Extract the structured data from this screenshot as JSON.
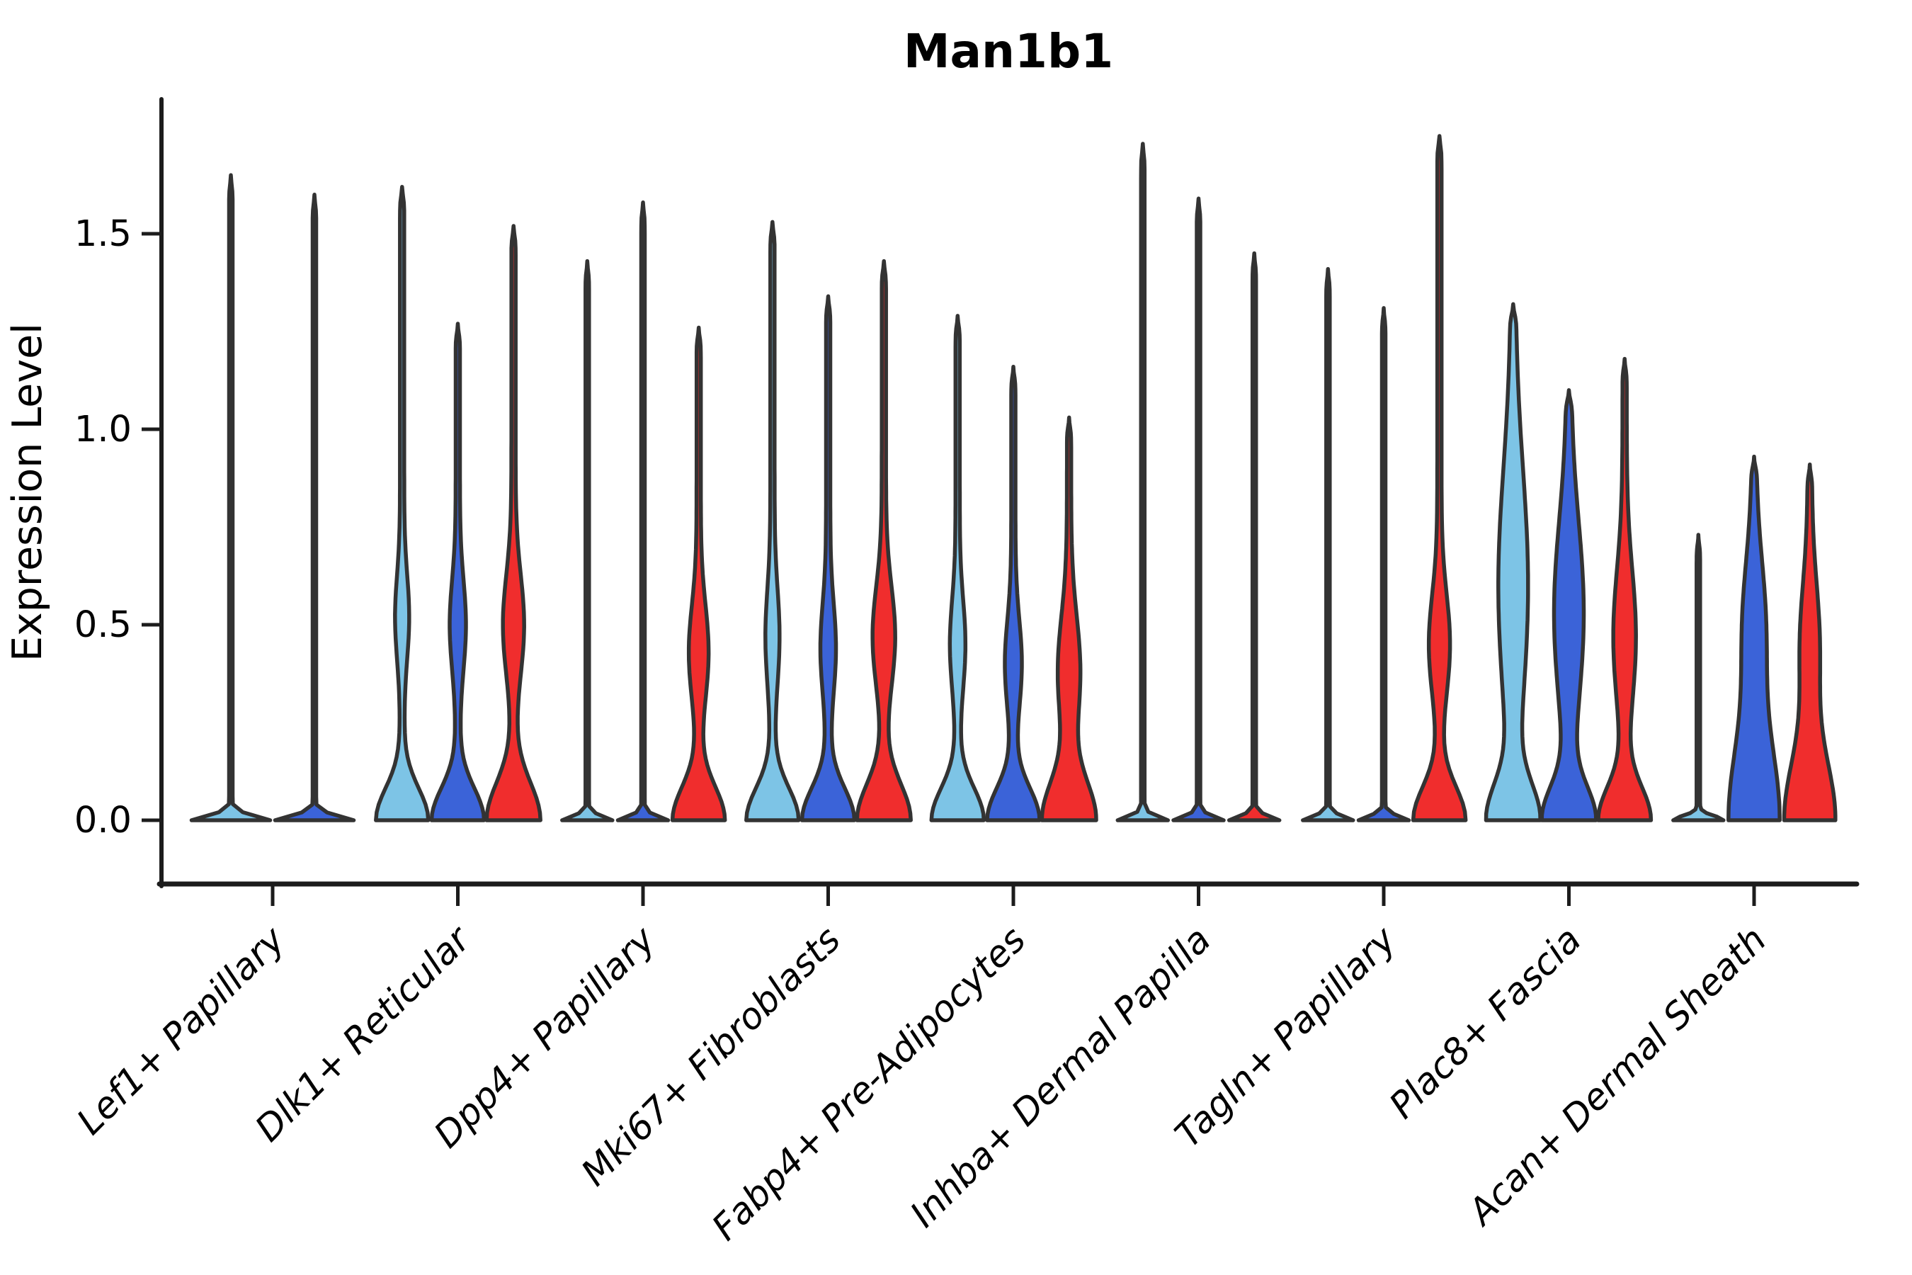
{
  "title": "Man1b1",
  "y_axis": {
    "label": "Expression Level",
    "tick_labels": [
      "0.0",
      "0.5",
      "1.0",
      "1.5"
    ]
  },
  "x_axis": {
    "categories": [
      "Lef1+ Papillary",
      "Dlk1+ Reticular",
      "Dpp4+ Papillary",
      "Mki67+ Fibroblasts",
      "Fabp4+ Pre-Adipocytes",
      "Inhba+ Dermal Papilla",
      "Tagln+ Papillary",
      "Plac8+ Fascia",
      "Acan+ Dermal Sheath"
    ]
  },
  "colors": {
    "light_blue": "#7DC4E6",
    "blue": "#3B63D8",
    "red": "#F02D2D",
    "outline": "#333333",
    "axis": "#1c1c1c",
    "text": "#000000"
  },
  "chart_data": {
    "type": "violin",
    "title": "Man1b1",
    "xlabel": "",
    "ylabel": "Expression Level",
    "ylim": [
      -0.16,
      1.84
    ],
    "yticks": [
      0.0,
      0.5,
      1.0,
      1.5
    ],
    "grid": false,
    "legend": "none",
    "split_order": [
      "light_blue",
      "blue",
      "red"
    ],
    "categories": [
      "Lef1+ Papillary",
      "Dlk1+ Reticular",
      "Dpp4+ Papillary",
      "Mki67+ Fibroblasts",
      "Fabp4+ Pre-Adipocytes",
      "Inhba+ Dermal Papilla",
      "Tagln+ Papillary",
      "Plac8+ Fascia",
      "Acan+ Dermal Sheath"
    ],
    "groups": [
      {
        "category": "Lef1+ Papillary",
        "violins": [
          {
            "split": "light_blue",
            "max": 1.65,
            "base_h": 0.018,
            "base_w": 53,
            "bulge": null,
            "spike_w": 2.5
          },
          {
            "split": "blue",
            "max": 1.6,
            "base_h": 0.018,
            "base_w": 53,
            "bulge": null,
            "spike_w": 2.5
          }
        ]
      },
      {
        "category": "Dlk1+ Reticular",
        "violins": [
          {
            "split": "light_blue",
            "max": 1.62,
            "base_h": 0.115,
            "base_w": 34,
            "bulge": [
              0.52,
              0.15,
              7
            ],
            "spike_w": 3
          },
          {
            "split": "blue",
            "max": 1.27,
            "base_h": 0.115,
            "base_w": 34,
            "bulge": [
              0.5,
              0.16,
              8.5
            ],
            "spike_w": 3
          },
          {
            "split": "red",
            "max": 1.52,
            "base_h": 0.135,
            "base_w": 35,
            "bulge": [
              0.5,
              0.18,
              12
            ],
            "spike_w": 3
          }
        ]
      },
      {
        "category": "Dpp4+ Papillary",
        "violins": [
          {
            "split": "light_blue",
            "max": 1.43,
            "base_h": 0.016,
            "base_w": 33,
            "bulge": null,
            "spike_w": 2.5
          },
          {
            "split": "blue",
            "max": 1.58,
            "base_h": 0.016,
            "base_w": 33,
            "bulge": null,
            "spike_w": 2.5
          },
          {
            "split": "red",
            "max": 1.26,
            "base_h": 0.12,
            "base_w": 34,
            "bulge": [
              0.43,
              0.17,
              11
            ],
            "spike_w": 3
          }
        ]
      },
      {
        "category": "Mki67+ Fibroblasts",
        "violins": [
          {
            "split": "light_blue",
            "max": 1.53,
            "base_h": 0.115,
            "base_w": 34,
            "bulge": [
              0.47,
              0.17,
              7
            ],
            "spike_w": 3
          },
          {
            "split": "blue",
            "max": 1.34,
            "base_h": 0.115,
            "base_w": 34,
            "bulge": [
              0.44,
              0.16,
              8
            ],
            "spike_w": 3
          },
          {
            "split": "red",
            "max": 1.43,
            "base_h": 0.13,
            "base_w": 35,
            "bulge": [
              0.47,
              0.18,
              13
            ],
            "spike_w": 3
          }
        ]
      },
      {
        "category": "Fabp4+ Pre-Adipocytes",
        "violins": [
          {
            "split": "light_blue",
            "max": 1.29,
            "base_h": 0.115,
            "base_w": 34,
            "bulge": [
              0.45,
              0.16,
              8
            ],
            "spike_w": 3
          },
          {
            "split": "blue",
            "max": 1.16,
            "base_h": 0.115,
            "base_w": 34,
            "bulge": [
              0.4,
              0.16,
              9
            ],
            "spike_w": 3
          },
          {
            "split": "red",
            "max": 1.03,
            "base_h": 0.14,
            "base_w": 35,
            "bulge": [
              0.38,
              0.2,
              13
            ],
            "spike_w": 3
          }
        ]
      },
      {
        "category": "Inhba+ Dermal Papilla",
        "violins": [
          {
            "split": "light_blue",
            "max": 1.73,
            "base_h": 0.016,
            "base_w": 33,
            "bulge": null,
            "spike_w": 2.5
          },
          {
            "split": "blue",
            "max": 1.59,
            "base_h": 0.016,
            "base_w": 33,
            "bulge": null,
            "spike_w": 2.5
          },
          {
            "split": "red",
            "max": 1.45,
            "base_h": 0.016,
            "base_w": 33,
            "bulge": null,
            "spike_w": 2.5
          }
        ]
      },
      {
        "category": "Tagln+ Papillary",
        "violins": [
          {
            "split": "light_blue",
            "max": 1.41,
            "base_h": 0.016,
            "base_w": 33,
            "bulge": null,
            "spike_w": 2.5
          },
          {
            "split": "blue",
            "max": 1.31,
            "base_h": 0.016,
            "base_w": 33,
            "bulge": null,
            "spike_w": 2.5
          },
          {
            "split": "red",
            "max": 1.75,
            "base_h": 0.12,
            "base_w": 34,
            "bulge": [
              0.45,
              0.18,
              12
            ],
            "spike_w": 3
          }
        ]
      },
      {
        "category": "Plac8+ Fascia",
        "violins": [
          {
            "split": "light_blue",
            "max": 1.32,
            "base_h": 0.13,
            "base_w": 33,
            "bulge": [
              0.6,
              0.42,
              18
            ],
            "spike_w": 3
          },
          {
            "split": "blue",
            "max": 1.1,
            "base_h": 0.12,
            "base_w": 34,
            "bulge": [
              0.53,
              0.33,
              18
            ],
            "spike_w": 3
          },
          {
            "split": "red",
            "max": 1.18,
            "base_h": 0.12,
            "base_w": 34,
            "bulge": [
              0.47,
              0.24,
              13
            ],
            "spike_w": 3
          }
        ]
      },
      {
        "category": "Acan+ Dermal Sheath",
        "violins": [
          {
            "split": "light_blue",
            "max": 0.73,
            "base_h": 0.016,
            "base_w": 33,
            "bulge": null,
            "spike_w": 2.5
          },
          {
            "split": "blue",
            "max": 0.93,
            "base_h": 0.28,
            "base_w": 33,
            "bulge": [
              0.5,
              0.24,
              13
            ],
            "spike_w": 3
          },
          {
            "split": "red",
            "max": 0.91,
            "base_h": 0.22,
            "base_w": 33,
            "bulge": [
              0.45,
              0.22,
              11
            ],
            "spike_w": 3
          }
        ]
      }
    ]
  }
}
